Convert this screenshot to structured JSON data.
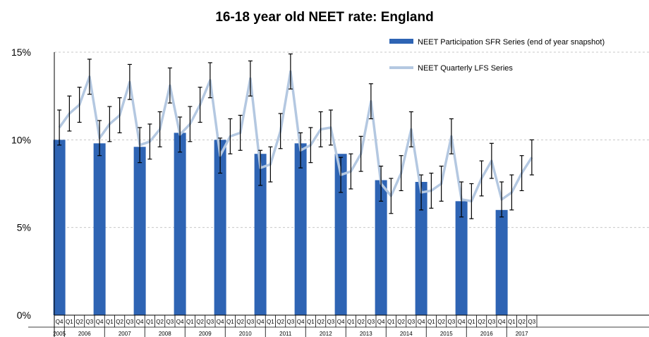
{
  "chart_data": {
    "type": "bar",
    "title": "16-18 year old NEET rate: England",
    "ylim": [
      0,
      15
    ],
    "y_ticks": [
      "0%",
      "5%",
      "10%",
      "15%"
    ],
    "y_tick_values": [
      0,
      5,
      10,
      15
    ],
    "grid": "horizontal dashed",
    "legend_position": "top-right",
    "quarter_labels": [
      "Q4",
      "Q1",
      "Q2",
      "Q3",
      "Q4",
      "Q1",
      "Q2",
      "Q3",
      "Q4",
      "Q1",
      "Q2",
      "Q3",
      "Q4",
      "Q1",
      "Q2",
      "Q3",
      "Q4",
      "Q1",
      "Q2",
      "Q3",
      "Q4",
      "Q1",
      "Q2",
      "Q3",
      "Q4",
      "Q1",
      "Q2",
      "Q3",
      "Q4",
      "Q1",
      "Q2",
      "Q3",
      "Q4",
      "Q1",
      "Q2",
      "Q3",
      "Q4",
      "Q1",
      "Q2",
      "Q3",
      "Q4",
      "Q1",
      "Q2",
      "Q3",
      "Q4",
      "Q1",
      "Q2",
      "Q3"
    ],
    "year_labels": [
      "2005",
      "2006",
      "2007",
      "2008",
      "2009",
      "2010",
      "2011",
      "2012",
      "2013",
      "2014",
      "2015",
      "2016",
      "2017"
    ],
    "year_spans": [
      [
        0,
        0
      ],
      [
        1,
        4
      ],
      [
        5,
        8
      ],
      [
        9,
        12
      ],
      [
        13,
        16
      ],
      [
        17,
        20
      ],
      [
        21,
        24
      ],
      [
        25,
        28
      ],
      [
        29,
        32
      ],
      [
        33,
        36
      ],
      [
        37,
        40
      ],
      [
        41,
        44
      ],
      [
        45,
        47
      ]
    ],
    "series": [
      {
        "name": "NEET Participation SFR Series (end of year snapshot)",
        "kind": "bar",
        "color": "#2e64b4",
        "bars": [
          {
            "index": 0,
            "value": 10.0
          },
          {
            "index": 4,
            "value": 9.8
          },
          {
            "index": 8,
            "value": 9.6
          },
          {
            "index": 12,
            "value": 10.4
          },
          {
            "index": 16,
            "value": 10.0
          },
          {
            "index": 20,
            "value": 9.2
          },
          {
            "index": 24,
            "value": 9.8
          },
          {
            "index": 28,
            "value": 9.2
          },
          {
            "index": 32,
            "value": 7.7
          },
          {
            "index": 36,
            "value": 7.6
          },
          {
            "index": 40,
            "value": 6.5
          },
          {
            "index": 44,
            "value": 6.0
          }
        ]
      },
      {
        "name": "NEET Quarterly LFS Series",
        "kind": "line",
        "color": "#b4c8e1",
        "values": [
          10.7,
          11.5,
          12.0,
          13.6,
          10.1,
          10.9,
          11.4,
          13.3,
          9.7,
          9.9,
          10.6,
          13.1,
          10.3,
          10.9,
          12.0,
          13.4,
          9.1,
          10.2,
          10.4,
          13.5,
          8.4,
          8.6,
          10.5,
          13.9,
          9.4,
          9.7,
          10.6,
          10.7,
          8.0,
          8.2,
          9.2,
          12.2,
          7.5,
          6.8,
          8.1,
          10.6,
          7.0,
          7.1,
          7.5,
          10.2,
          6.6,
          6.5,
          7.8,
          8.8,
          6.6,
          7.0,
          8.1,
          9.0
        ],
        "errors": [
          1.0,
          1.0,
          1.0,
          1.0,
          1.0,
          1.0,
          1.0,
          1.0,
          1.0,
          1.0,
          1.0,
          1.0,
          1.0,
          1.0,
          1.0,
          1.0,
          1.0,
          1.0,
          1.0,
          1.0,
          1.0,
          1.0,
          1.0,
          1.0,
          1.0,
          1.0,
          1.0,
          1.0,
          1.0,
          1.0,
          1.0,
          1.0,
          1.0,
          1.0,
          1.0,
          1.0,
          1.0,
          1.0,
          1.0,
          1.0,
          1.0,
          1.0,
          1.0,
          1.0,
          1.0,
          1.0,
          1.0,
          1.0
        ]
      }
    ]
  }
}
